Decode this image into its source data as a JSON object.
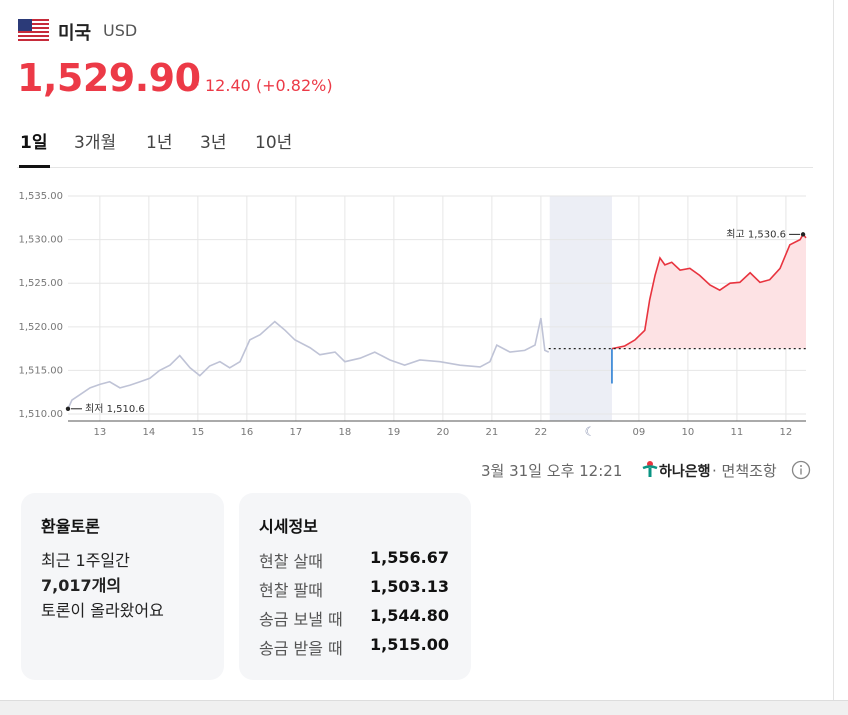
{
  "header": {
    "country": "미국",
    "currency": "USD",
    "price": "1,529.90",
    "change": "12.40 (+0.82%)"
  },
  "tabs": [
    "1일",
    "3개월",
    "1년",
    "3년",
    "10년"
  ],
  "chart_data": {
    "type": "line",
    "xlim": [
      12.35,
      27.41
    ],
    "ylim": [
      1509.2,
      1535
    ],
    "yticks": [
      {
        "value": 1535,
        "label": "1,535.00"
      },
      {
        "value": 1530,
        "label": "1,530.00"
      },
      {
        "value": 1525,
        "label": "1,525.00"
      },
      {
        "value": 1520,
        "label": "1,520.00"
      },
      {
        "value": 1515,
        "label": "1,515.00"
      },
      {
        "value": 1510,
        "label": "1,510.00"
      }
    ],
    "xticks": [
      13,
      14,
      15,
      16,
      17,
      18,
      19,
      20,
      21,
      22,
      {
        "value": 24,
        "label": "09"
      },
      {
        "value": 25,
        "label": "10"
      },
      {
        "value": 26,
        "label": "11"
      },
      {
        "value": 27,
        "label": "12"
      }
    ],
    "grid": true,
    "shade_xrange": [
      22.18,
      23.45
    ],
    "reference_value": 1517.5,
    "series": [
      {
        "color": "#bfc3d6",
        "x": [
          12.35,
          12.43,
          12.59,
          12.8,
          13,
          13.2,
          13.41,
          13.61,
          13.82,
          14.02,
          14.22,
          14.43,
          14.63,
          14.84,
          15.04,
          15.24,
          15.45,
          15.65,
          15.86,
          16.06,
          16.27,
          16.57,
          16.78,
          16.98,
          17.29,
          17.49,
          17.8,
          18,
          18.31,
          18.61,
          18.92,
          19.22,
          19.53,
          19.94,
          20.35,
          20.76,
          20.96,
          21.1,
          21.37,
          21.67,
          21.88,
          22,
          22.08,
          22.16
        ],
        "values": [
          1510.6,
          1511.6,
          1512.2,
          1513,
          1513.4,
          1513.7,
          1513,
          1513.3,
          1513.7,
          1514.1,
          1515,
          1515.6,
          1516.7,
          1515.3,
          1514.4,
          1515.5,
          1516,
          1515.3,
          1516,
          1518.5,
          1519.1,
          1520.6,
          1519.6,
          1518.5,
          1517.6,
          1516.8,
          1517.1,
          1516,
          1516.4,
          1517.1,
          1516.2,
          1515.6,
          1516.2,
          1516,
          1515.6,
          1515.4,
          1516,
          1517.9,
          1517.1,
          1517.3,
          1517.9,
          1521,
          1517.3,
          1517.1
        ]
      },
      {
        "color": "#2b7fd4",
        "x": [
          23.45,
          23.45
        ],
        "values": [
          1517.5,
          1513.5
        ]
      },
      {
        "color": "#e8343f",
        "fill": "#fde2e4",
        "x": [
          23.45,
          23.71,
          23.92,
          24.12,
          24.22,
          24.33,
          24.43,
          24.53,
          24.67,
          24.84,
          25.04,
          25.24,
          25.45,
          25.65,
          25.86,
          26.06,
          26.27,
          26.47,
          26.67,
          26.88,
          27.08,
          27.29,
          27.35,
          27.41
        ],
        "values": [
          1517.5,
          1517.8,
          1518.5,
          1519.6,
          1523.1,
          1525.9,
          1527.9,
          1527.1,
          1527.4,
          1526.5,
          1526.7,
          1525.9,
          1524.8,
          1524.2,
          1525,
          1525.1,
          1526.2,
          1525.1,
          1525.4,
          1526.7,
          1529.4,
          1530,
          1530.6,
          1530.2
        ]
      }
    ],
    "annotations": [
      {
        "text": "최고 1,530.6",
        "x": 27.35,
        "y": 1530.6
      },
      {
        "text": "최저 1,510.6",
        "x": 12.35,
        "y": 1510.6
      }
    ]
  },
  "footer": {
    "time": "3월 31일 오후 12:21",
    "bank": "하나은행",
    "disclaimer": "· 면책조항"
  },
  "cards": {
    "discussion": {
      "title": "환율토론",
      "lines": [
        "최근 1주일간",
        "7,017개의",
        "토론이 올라왔어요"
      ]
    },
    "quotes": {
      "title": "시세정보",
      "rows": [
        [
          "현찰 살때",
          "1,556.67"
        ],
        [
          "현찰 팔때",
          "1,503.13"
        ],
        [
          "송금 보낼 때",
          "1,544.80"
        ],
        [
          "송금 받을 때",
          "1,515.00"
        ]
      ]
    }
  }
}
